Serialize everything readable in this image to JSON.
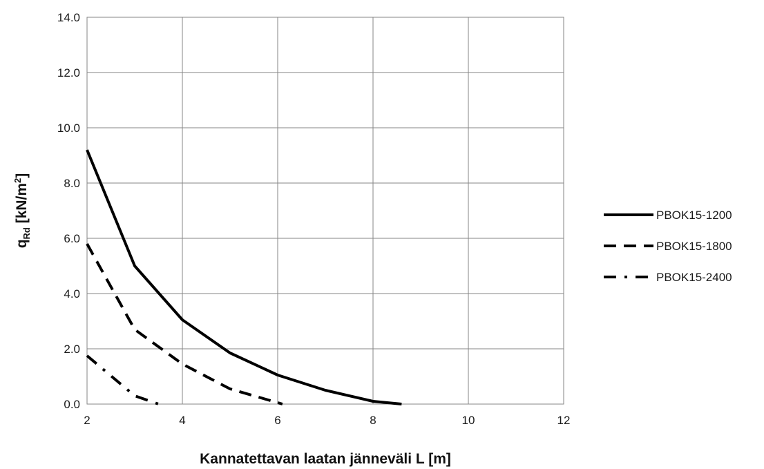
{
  "chart_data": {
    "type": "line",
    "title": "",
    "xlabel": "Kannatettavan laatan jänneväli L [m]",
    "ylabel_main": "q",
    "ylabel_sub": "Rd",
    "ylabel_unit": " [kN/m",
    "ylabel_sup": "2",
    "ylabel_close": "]",
    "xlim": [
      2,
      12
    ],
    "ylim": [
      0,
      14
    ],
    "xticks": [
      "2",
      "4",
      "6",
      "8",
      "10",
      "12"
    ],
    "yticks": [
      "0.0",
      "2.0",
      "4.0",
      "6.0",
      "8.0",
      "10.0",
      "12.0",
      "14.0"
    ],
    "grid": true,
    "legend_position": "right",
    "series": [
      {
        "name": "PBOK15-1200",
        "style": "solid",
        "color": "#000000",
        "x": [
          2,
          3,
          4,
          5,
          6,
          7,
          8,
          8.6
        ],
        "y": [
          9.2,
          5.0,
          3.05,
          1.85,
          1.05,
          0.5,
          0.1,
          0.0
        ]
      },
      {
        "name": "PBOK15-1800",
        "style": "dashed",
        "color": "#000000",
        "x": [
          2,
          3,
          4,
          5,
          6,
          6.1
        ],
        "y": [
          5.8,
          2.7,
          1.45,
          0.55,
          0.05,
          0.0
        ]
      },
      {
        "name": "PBOK15-2400",
        "style": "dashdot",
        "color": "#000000",
        "x": [
          2,
          3,
          3.5
        ],
        "y": [
          1.75,
          0.3,
          0.0
        ]
      }
    ]
  }
}
